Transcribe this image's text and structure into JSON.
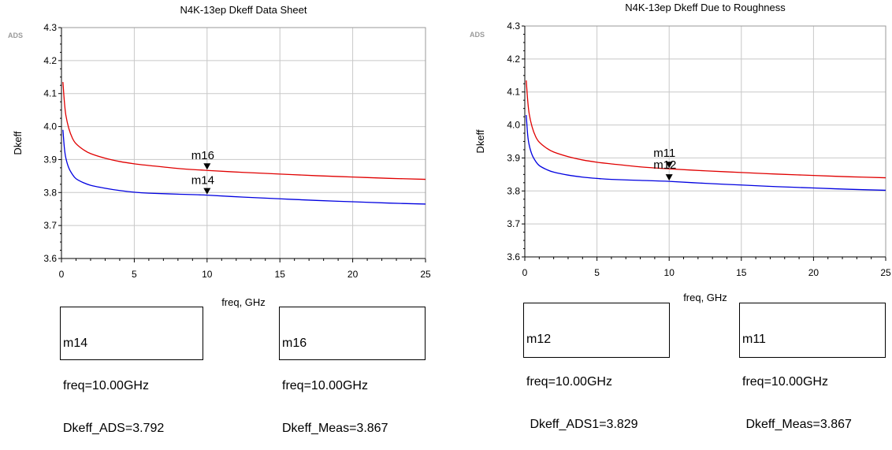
{
  "chart_data": [
    {
      "type": "line",
      "title": "N4K-13ep Dkeff Data Sheet",
      "xlabel": "freq, GHz",
      "ylabel": "Dkeff",
      "tool_tag": "ADS",
      "xlim": [
        0,
        25
      ],
      "ylim": [
        3.6,
        4.3
      ],
      "x_ticks": [
        "0",
        "5",
        "10",
        "15",
        "20",
        "25"
      ],
      "y_ticks": [
        "3.6",
        "3.7",
        "3.8",
        "3.9",
        "4.0",
        "4.1",
        "4.2",
        "4.3"
      ],
      "grid": true,
      "series": [
        {
          "color": "#e00000",
          "x": [
            0.1,
            0.2,
            0.3,
            0.5,
            0.75,
            1,
            1.5,
            2,
            3,
            4,
            5,
            6,
            8,
            10,
            12.5,
            15,
            17.5,
            20,
            22.5,
            25
          ],
          "y": [
            4.135,
            4.075,
            4.035,
            3.995,
            3.965,
            3.948,
            3.93,
            3.918,
            3.904,
            3.894,
            3.887,
            3.882,
            3.873,
            3.867,
            3.861,
            3.856,
            3.851,
            3.847,
            3.843,
            3.84
          ]
        },
        {
          "color": "#0000e0",
          "x": [
            0.1,
            0.2,
            0.3,
            0.5,
            0.75,
            1,
            1.5,
            2,
            3,
            4,
            5,
            6,
            8,
            10,
            12.5,
            15,
            17.5,
            20,
            22.5,
            25
          ],
          "y": [
            3.99,
            3.935,
            3.905,
            3.875,
            3.855,
            3.842,
            3.83,
            3.822,
            3.813,
            3.806,
            3.801,
            3.798,
            3.795,
            3.792,
            3.786,
            3.781,
            3.776,
            3.772,
            3.768,
            3.765
          ]
        }
      ],
      "markers": [
        {
          "label": "m16",
          "x": 10,
          "y": 3.867
        },
        {
          "label": "m14",
          "x": 10,
          "y": 3.792
        }
      ],
      "readouts": [
        {
          "lines": [
            "m14",
            "freq=10.00GHz",
            "Dkeff_ADS=3.792"
          ]
        },
        {
          "lines": [
            "m16",
            "freq=10.00GHz",
            "Dkeff_Meas=3.867"
          ]
        }
      ]
    },
    {
      "type": "line",
      "title": "N4K-13ep Dkeff Due to Roughness",
      "xlabel": "freq, GHz",
      "ylabel": "Dkeff",
      "tool_tag": "ADS",
      "xlim": [
        0,
        25
      ],
      "ylim": [
        3.6,
        4.3
      ],
      "x_ticks": [
        "0",
        "5",
        "10",
        "15",
        "20",
        "25"
      ],
      "y_ticks": [
        "3.6",
        "3.7",
        "3.8",
        "3.9",
        "4.0",
        "4.1",
        "4.2",
        "4.3"
      ],
      "grid": true,
      "series": [
        {
          "color": "#e00000",
          "x": [
            0.1,
            0.2,
            0.3,
            0.5,
            0.75,
            1,
            1.5,
            2,
            3,
            4,
            5,
            6,
            8,
            10,
            12.5,
            15,
            17.5,
            20,
            22.5,
            25
          ],
          "y": [
            4.135,
            4.075,
            4.035,
            3.995,
            3.965,
            3.948,
            3.93,
            3.918,
            3.904,
            3.894,
            3.887,
            3.882,
            3.873,
            3.867,
            3.861,
            3.856,
            3.851,
            3.847,
            3.843,
            3.84
          ]
        },
        {
          "color": "#0000e0",
          "x": [
            0.1,
            0.2,
            0.3,
            0.5,
            0.75,
            1,
            1.5,
            2,
            3,
            4,
            5,
            6,
            8,
            10,
            12.5,
            15,
            17.5,
            20,
            22.5,
            25
          ],
          "y": [
            4.03,
            3.97,
            3.94,
            3.91,
            3.89,
            3.877,
            3.865,
            3.857,
            3.848,
            3.842,
            3.838,
            3.835,
            3.832,
            3.829,
            3.823,
            3.818,
            3.813,
            3.809,
            3.805,
            3.802
          ]
        }
      ],
      "markers": [
        {
          "label": "m11",
          "x": 10,
          "y": 3.867
        },
        {
          "label": "m12",
          "x": 10,
          "y": 3.829
        }
      ],
      "readouts": [
        {
          "lines": [
            "m12",
            "freq=10.00GHz",
            " Dkeff_ADS1=3.829"
          ]
        },
        {
          "lines": [
            "m11",
            "freq=10.00GHz",
            " Dkeff_Meas=3.867"
          ]
        }
      ]
    }
  ]
}
